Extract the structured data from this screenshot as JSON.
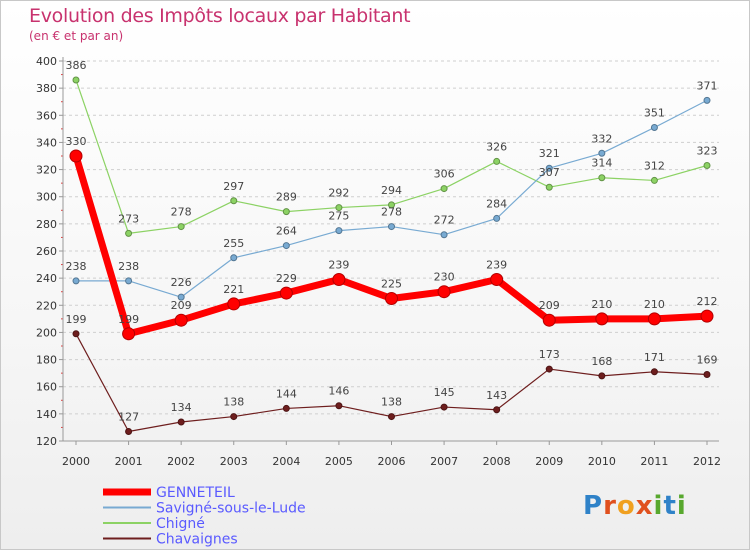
{
  "chart_data": {
    "type": "line",
    "title": "Evolution des Impôts locaux par Habitant",
    "subtitle": "(en € et par an)",
    "x": [
      "2000",
      "2001",
      "2002",
      "2003",
      "2004",
      "2005",
      "2006",
      "2007",
      "2008",
      "2009",
      "2010",
      "2011",
      "2012"
    ],
    "ylim": [
      120,
      400
    ],
    "yticks": [
      120,
      140,
      160,
      180,
      200,
      220,
      240,
      260,
      280,
      300,
      320,
      340,
      360,
      380,
      400
    ],
    "grid": "horizontal-dashed",
    "legend_position": "bottom-left",
    "series": [
      {
        "name": "Chavaignes",
        "color": "#6e1e1e",
        "width": 1.2,
        "values": [
          199,
          127,
          134,
          138,
          144,
          146,
          138,
          145,
          143,
          173,
          168,
          171,
          169
        ]
      },
      {
        "name": "Chigné",
        "color": "#8cd264",
        "width": 1.2,
        "values": [
          386,
          273,
          278,
          297,
          289,
          292,
          294,
          306,
          326,
          307,
          314,
          312,
          323
        ]
      },
      {
        "name": "Savigné-sous-le-Lude",
        "color": "#78aad2",
        "width": 1.2,
        "values": [
          238,
          238,
          226,
          255,
          264,
          275,
          278,
          272,
          284,
          321,
          332,
          351,
          371
        ]
      },
      {
        "name": "GENNETEIL",
        "color": "#ff0000",
        "width": 7,
        "values": [
          330,
          199,
          209,
          221,
          229,
          239,
          225,
          230,
          239,
          209,
          210,
          210,
          212
        ]
      }
    ]
  },
  "legend_order": [
    "GENNETEIL",
    "Savigné-sous-le-Lude",
    "Chigné",
    "Chavaignes"
  ],
  "logo": {
    "letters": [
      "P",
      "r",
      "o",
      "x",
      "i",
      "t",
      "i"
    ]
  }
}
